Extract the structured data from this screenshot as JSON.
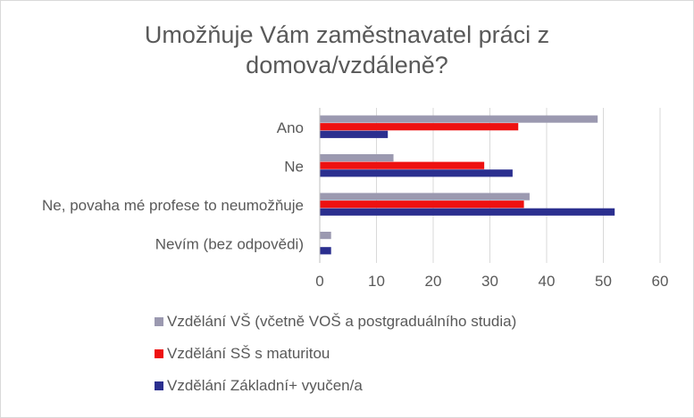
{
  "chart_data": {
    "type": "bar",
    "orientation": "horizontal",
    "title_lines": [
      "Umožňuje Vám zaměstnavatel práci z",
      "domova/vzdáleně?"
    ],
    "categories": [
      "Ano",
      "Ne",
      "Ne, povaha mé profese to neumožňuje",
      "Nevím (bez odpovědi)"
    ],
    "series": [
      {
        "name": "Vzdělání VŠ (včetně VOŠ a postgraduálního studia)",
        "color": "#9b99b0",
        "values": [
          49,
          13,
          37,
          2
        ]
      },
      {
        "name": "Vzdělání SŠ s maturitou",
        "color": "#ee1111",
        "values": [
          35,
          29,
          36,
          0
        ]
      },
      {
        "name": "Vzdělání Základní+ vyučen/a",
        "color": "#2b2f8f",
        "values": [
          12,
          34,
          52,
          2
        ]
      }
    ],
    "xlim": [
      0,
      60
    ],
    "xticks": [
      "0",
      "10",
      "20",
      "30",
      "40",
      "50",
      "60"
    ],
    "grid": true,
    "legend_position": "bottom"
  }
}
